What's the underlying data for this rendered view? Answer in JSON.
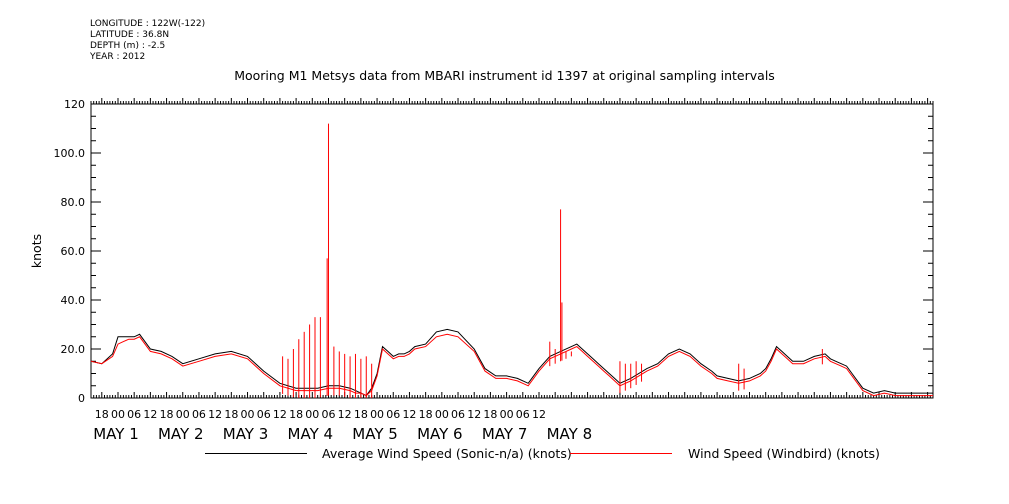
{
  "metadata": {
    "longitude": "LONGITUDE : 122W(-122)",
    "latitude": "LATITUDE : 36.8N",
    "depth": "DEPTH (m) : -2.5",
    "year": "YEAR : 2012"
  },
  "chart_data": {
    "type": "line",
    "title": "Mooring M1 Metsys data from MBARI instrument id 1397 at original sampling intervals",
    "ylabel": "knots",
    "xlabel": "",
    "ylim": [
      0,
      120
    ],
    "yticks": [
      "0",
      "20.0",
      "40.0",
      "60.0",
      "80.0",
      "100.0",
      "120"
    ],
    "x_unit": "hours since 2012-05-01 00:00",
    "xlim": [
      -10,
      302
    ],
    "xticks_hour": [
      "18",
      "00",
      "06",
      "12",
      "18",
      "00",
      "06",
      "12",
      "18",
      "00",
      "06",
      "12",
      "18",
      "00",
      "06",
      "12",
      "18",
      "00",
      "06",
      "12",
      "18",
      "00",
      "06",
      "12",
      "18",
      "00",
      "06",
      "12"
    ],
    "day_labels": [
      "MAY  1",
      "MAY  2",
      "MAY  3",
      "MAY  4",
      "MAY  5",
      "MAY  6",
      "MAY  7",
      "MAY  8"
    ],
    "grid": false,
    "legend_position": "bottom",
    "series": [
      {
        "name": "Average Wind Speed (Sonic-n/a) (knots)",
        "color": "#000000",
        "x": [
          -10,
          -6,
          -2,
          0,
          2,
          4,
          6,
          8,
          12,
          16,
          20,
          24,
          30,
          36,
          42,
          48,
          54,
          60,
          66,
          70,
          74,
          78,
          82,
          86,
          88,
          90,
          92,
          94,
          96,
          98,
          100,
          102,
          104,
          106,
          108,
          110,
          114,
          118,
          122,
          126,
          132,
          136,
          140,
          144,
          148,
          152,
          156,
          160,
          164,
          168,
          170,
          172,
          174,
          176,
          178,
          180,
          182,
          184,
          186,
          190,
          196,
          200,
          204,
          208,
          212,
          216,
          220,
          222,
          226,
          230,
          234,
          238,
          240,
          242,
          244,
          246,
          248,
          250,
          254,
          258,
          262,
          264,
          266,
          268,
          270,
          272,
          276,
          280,
          284,
          288,
          292,
          296,
          300,
          302
        ],
        "y": [
          15,
          14,
          18,
          25,
          25,
          25,
          25,
          26,
          20,
          19,
          17,
          14,
          16,
          18,
          19,
          17,
          11,
          6,
          4,
          4,
          4,
          5,
          5,
          4,
          3,
          2,
          1,
          4,
          10,
          21,
          19,
          17,
          18,
          18,
          19,
          21,
          22,
          27,
          28,
          27,
          20,
          12,
          9,
          9,
          8,
          6,
          12,
          17,
          19,
          21,
          22,
          20,
          18,
          16,
          14,
          12,
          10,
          8,
          6,
          8,
          12,
          14,
          18,
          20,
          18,
          14,
          11,
          9,
          8,
          7,
          8,
          10,
          12,
          16,
          21,
          19,
          17,
          15,
          15,
          17,
          18,
          16,
          15,
          14,
          13,
          10,
          4,
          2,
          3,
          2,
          2,
          2,
          2,
          2
        ]
      },
      {
        "name": "Wind Speed (Windbird) (knots)",
        "color": "#ff0000",
        "x": [
          -10,
          -6,
          -2,
          0,
          2,
          4,
          6,
          8,
          12,
          16,
          20,
          24,
          30,
          36,
          42,
          48,
          54,
          60,
          66,
          70,
          74,
          78,
          82,
          86,
          88,
          90,
          92,
          94,
          96,
          98,
          100,
          102,
          104,
          106,
          108,
          110,
          114,
          118,
          122,
          126,
          132,
          136,
          140,
          144,
          148,
          152,
          156,
          160,
          164,
          168,
          170,
          172,
          174,
          176,
          178,
          180,
          182,
          184,
          186,
          190,
          196,
          200,
          204,
          208,
          212,
          216,
          220,
          222,
          226,
          230,
          234,
          238,
          240,
          242,
          244,
          246,
          248,
          250,
          254,
          258,
          262,
          264,
          266,
          268,
          270,
          272,
          276,
          280,
          284,
          288,
          292,
          296,
          300,
          302
        ],
        "y": [
          15,
          14,
          17,
          22,
          23,
          24,
          24,
          25,
          19,
          18,
          16,
          13,
          15,
          17,
          18,
          16,
          10,
          5,
          3,
          3,
          3,
          4,
          4,
          3,
          2,
          2,
          1,
          3,
          9,
          20,
          18,
          16,
          17,
          17,
          18,
          20,
          21,
          25,
          26,
          25,
          19,
          11,
          8,
          8,
          7,
          5,
          11,
          16,
          18,
          20,
          21,
          19,
          17,
          15,
          13,
          11,
          9,
          7,
          5,
          7,
          11,
          13,
          17,
          19,
          17,
          13,
          10,
          8,
          7,
          6,
          7,
          9,
          11,
          15,
          20,
          18,
          16,
          14,
          14,
          16,
          17,
          15,
          14,
          13,
          12,
          9,
          3,
          1,
          2,
          1,
          1,
          1,
          1,
          1
        ],
        "spikes": [
          {
            "x": 78,
            "y": 112
          },
          {
            "x": 77.5,
            "y": 57
          },
          {
            "x": 75,
            "y": 33
          },
          {
            "x": 73,
            "y": 33
          },
          {
            "x": 71,
            "y": 30
          },
          {
            "x": 69,
            "y": 27
          },
          {
            "x": 67,
            "y": 24
          },
          {
            "x": 65,
            "y": 20
          },
          {
            "x": 63,
            "y": 16
          },
          {
            "x": 61,
            "y": 17
          },
          {
            "x": 80,
            "y": 21
          },
          {
            "x": 82,
            "y": 19
          },
          {
            "x": 84,
            "y": 18
          },
          {
            "x": 86,
            "y": 17
          },
          {
            "x": 88,
            "y": 18
          },
          {
            "x": 90,
            "y": 16
          },
          {
            "x": 92,
            "y": 17
          },
          {
            "x": 94,
            "y": 14
          },
          {
            "x": 160,
            "y": 23
          },
          {
            "x": 162,
            "y": 20
          },
          {
            "x": 164,
            "y": 77
          },
          {
            "x": 164.5,
            "y": 39
          },
          {
            "x": 166,
            "y": 19
          },
          {
            "x": 168,
            "y": 19
          },
          {
            "x": 186,
            "y": 15
          },
          {
            "x": 188,
            "y": 14
          },
          {
            "x": 190,
            "y": 14
          },
          {
            "x": 192,
            "y": 15
          },
          {
            "x": 194,
            "y": 14
          },
          {
            "x": 230,
            "y": 14
          },
          {
            "x": 232,
            "y": 12
          },
          {
            "x": 261,
            "y": 20
          }
        ]
      }
    ]
  }
}
